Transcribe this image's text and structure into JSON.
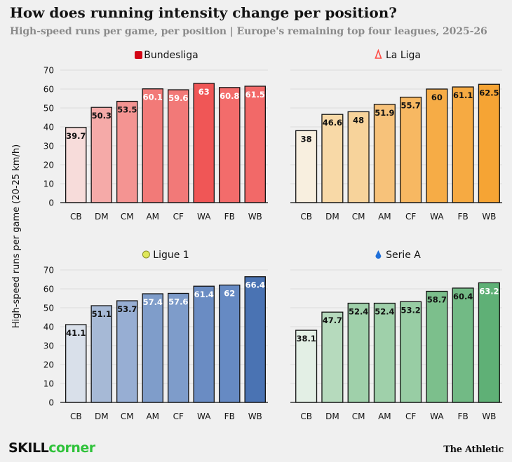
{
  "title": "How does running intensity change per position?",
  "subtitle": "High-speed runs per game, per position | Europe's remaining top four leagues, 2025-26",
  "footer": {
    "brand_part1": "SKILL",
    "brand_part2": "corner",
    "publisher": "The Athletic"
  },
  "chart_data": [
    {
      "type": "bar",
      "title": "Bundesliga",
      "icon": "bundesliga-logo-icon",
      "ylabel": "High-speed runs per game (20-25 km/h)",
      "ylim": [
        0,
        70
      ],
      "yticks": [
        0,
        10,
        20,
        30,
        40,
        50,
        60,
        70
      ],
      "categories": [
        "CB",
        "DM",
        "CM",
        "AM",
        "CF",
        "WA",
        "FB",
        "WB"
      ],
      "values": [
        39.7,
        50.3,
        53.5,
        60.1,
        59.6,
        63,
        60.8,
        61.5
      ],
      "labels": [
        "39.7",
        "50.3",
        "53.5",
        "60.1",
        "59.6",
        "63",
        "60.8",
        "61.5"
      ],
      "colors": [
        "#f7dcda",
        "#f5aaa8",
        "#f49492",
        "#f27a78",
        "#f27978",
        "#f05656",
        "#f36c6b",
        "#f26968"
      ]
    },
    {
      "type": "bar",
      "title": "La Liga",
      "icon": "laliga-logo-icon",
      "ylabel": "High-speed runs per game (20-25 km/h)",
      "ylim": [
        0,
        70
      ],
      "yticks": [
        0,
        10,
        20,
        30,
        40,
        50,
        60,
        70
      ],
      "categories": [
        "CB",
        "DM",
        "CM",
        "AM",
        "CF",
        "WA",
        "FB",
        "WB"
      ],
      "values": [
        38,
        46.6,
        48,
        51.9,
        55.7,
        60,
        61.1,
        62.5
      ],
      "labels": [
        "38",
        "46.6",
        "48",
        "51.9",
        "55.7",
        "60",
        "61.1",
        "62.5"
      ],
      "colors": [
        "#f8efdf",
        "#f8d9a7",
        "#f7d39b",
        "#f7c27a",
        "#f7b862",
        "#f6ac46",
        "#f6aa42",
        "#f6a434"
      ]
    },
    {
      "type": "bar",
      "title": "Ligue 1",
      "icon": "ligue1-logo-icon",
      "ylabel": "High-speed runs per game (20-25 km/h)",
      "ylim": [
        0,
        70
      ],
      "yticks": [
        0,
        10,
        20,
        30,
        40,
        50,
        60,
        70
      ],
      "categories": [
        "CB",
        "DM",
        "CM",
        "AM",
        "CF",
        "WA",
        "FB",
        "WB"
      ],
      "values": [
        41.1,
        51.1,
        53.7,
        57.4,
        57.6,
        61.4,
        62,
        66.4
      ],
      "labels": [
        "41.1",
        "51.1",
        "53.7",
        "57.4",
        "57.6",
        "61.4",
        "62",
        "66.4"
      ],
      "colors": [
        "#d9e0ea",
        "#a6b9d6",
        "#97aed3",
        "#7f9dca",
        "#7e9cca",
        "#6a8cc3",
        "#668ac3",
        "#4a73b3"
      ]
    },
    {
      "type": "bar",
      "title": "Serie A",
      "icon": "seriea-logo-icon",
      "ylabel": "High-speed runs per game (20-25 km/h)",
      "ylim": [
        0,
        70
      ],
      "yticks": [
        0,
        10,
        20,
        30,
        40,
        50,
        60,
        70
      ],
      "categories": [
        "CB",
        "DM",
        "CM",
        "AM",
        "CF",
        "WA",
        "FB",
        "WB"
      ],
      "values": [
        38.1,
        47.7,
        52.4,
        52.4,
        53.2,
        58.7,
        60.4,
        63.2
      ],
      "labels": [
        "38.1",
        "47.7",
        "52.4",
        "52.4",
        "53.2",
        "58.7",
        "60.4",
        "63.2"
      ],
      "colors": [
        "#e3efe5",
        "#b6dabd",
        "#9fd0aa",
        "#9fd0aa",
        "#98cda4",
        "#7cbf8c",
        "#72ba85",
        "#5fb076"
      ]
    }
  ]
}
